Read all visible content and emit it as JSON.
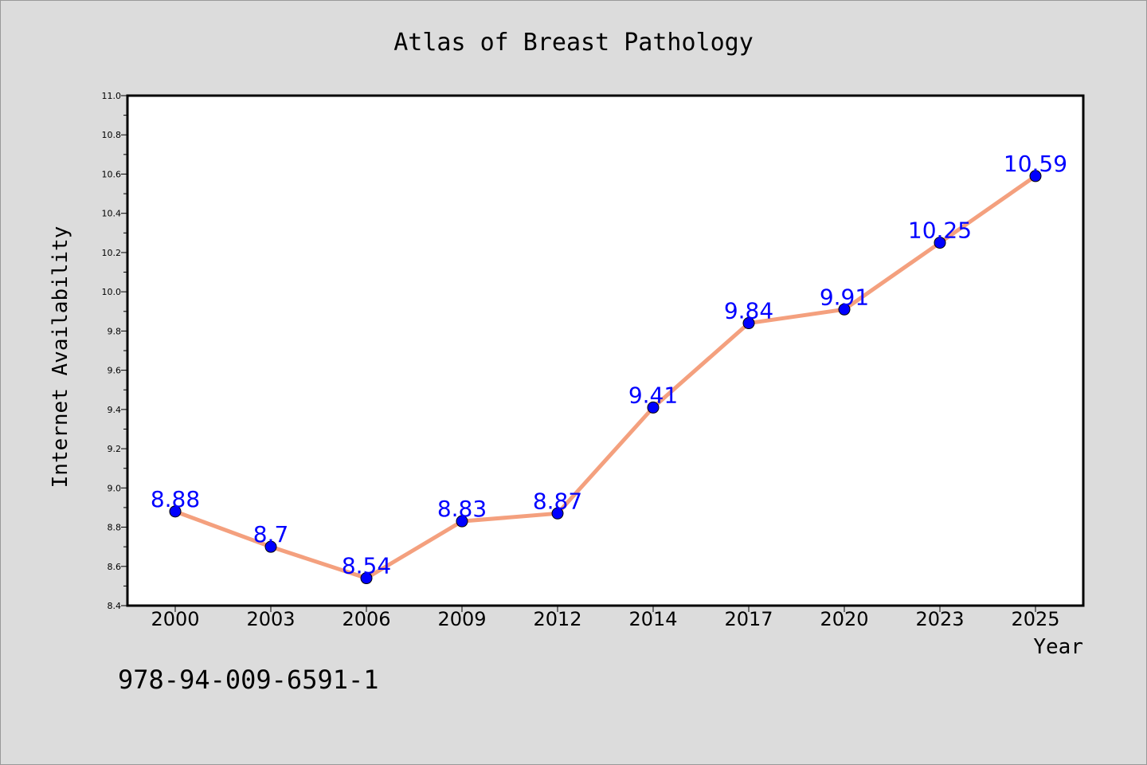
{
  "chart_data": {
    "type": "line",
    "title": "Atlas of Breast Pathology",
    "xlabel": "Year",
    "ylabel": "Internet Availability",
    "categories": [
      "2000",
      "2003",
      "2006",
      "2009",
      "2012",
      "2014",
      "2017",
      "2020",
      "2023",
      "2025"
    ],
    "values": [
      8.88,
      8.7,
      8.54,
      8.83,
      8.87,
      9.41,
      9.84,
      9.91,
      10.25,
      10.59
    ],
    "data_labels": [
      "8.88",
      "8.7",
      "8.54",
      "8.83",
      "8.87",
      "9.41",
      "9.84",
      "9.91",
      "10.25",
      "10.59"
    ],
    "ylim": [
      8.4,
      11.0
    ],
    "y_ticks": [
      "8.4",
      "8.6",
      "8.8",
      "9.0",
      "9.2",
      "9.4",
      "9.6",
      "9.8",
      "10.0",
      "10.2",
      "10.4",
      "10.6",
      "10.8",
      "11.0"
    ],
    "grid": false,
    "legend": "none",
    "line_color": "#f4a07e",
    "marker_color": "#0000ff",
    "label_color": "#0000ff",
    "background_color": "#dcdcdc",
    "plot_background_color": "#ffffff"
  },
  "footer_text": "978-94-009-6591-1"
}
